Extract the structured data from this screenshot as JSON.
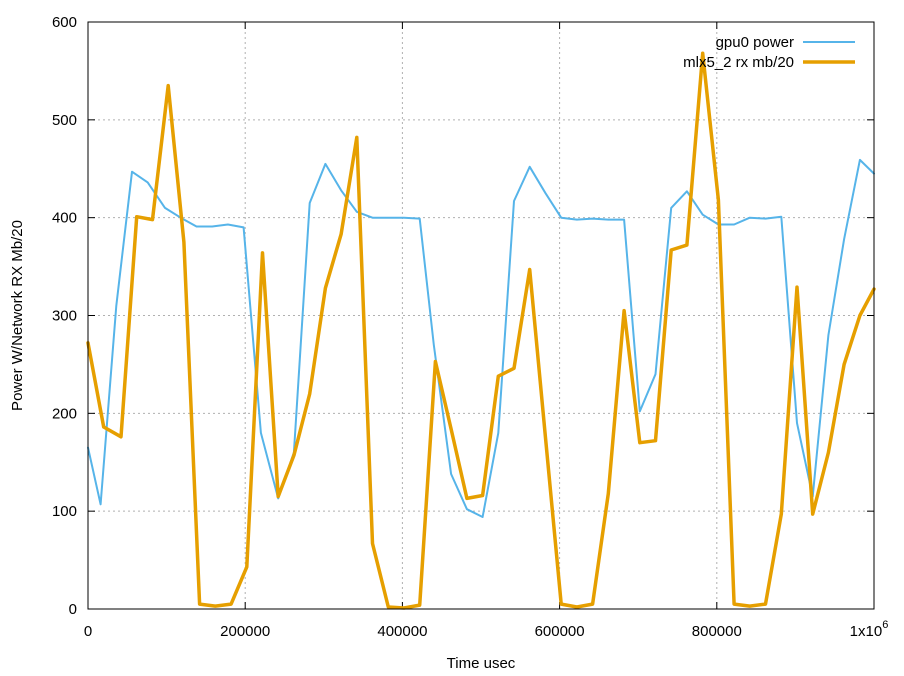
{
  "chart_data": {
    "type": "line",
    "xlabel": "Time usec",
    "ylabel": "Power W/Network RX Mb/20",
    "xlim": [
      0,
      1000000
    ],
    "ylim": [
      0,
      600
    ],
    "x_ticks": [
      0,
      200000,
      400000,
      600000,
      800000,
      1000000
    ],
    "x_tick_labels": [
      "0",
      "200000",
      "400000",
      "600000",
      "800000",
      "1x10"
    ],
    "x_last_tick_exponent": "6",
    "y_ticks": [
      0,
      100,
      200,
      300,
      400,
      500,
      600
    ],
    "y_tick_labels": [
      "0",
      "100",
      "200",
      "300",
      "400",
      "500",
      "600"
    ],
    "grid": true,
    "legend_position": "top-right",
    "series": [
      {
        "name": "gpu0 power",
        "color": "#56b4e9",
        "x": [
          0,
          16000,
          36000,
          56000,
          76000,
          98000,
          118000,
          138000,
          158000,
          178000,
          198000,
          220000,
          242000,
          262000,
          282000,
          302000,
          322000,
          342000,
          362000,
          382000,
          402000,
          422000,
          440000,
          462000,
          482000,
          502000,
          522000,
          542000,
          562000,
          582000,
          602000,
          622000,
          642000,
          662000,
          682000,
          702000,
          722000,
          742000,
          762000,
          782000,
          802000,
          822000,
          842000,
          862000,
          882000,
          902000,
          922000,
          942000,
          962000,
          982000,
          1000000
        ],
        "values": [
          165,
          107,
          310,
          447,
          436,
          410,
          400,
          391,
          391,
          393,
          390,
          180,
          113,
          160,
          415,
          455,
          428,
          406,
          400,
          400,
          400,
          399,
          270,
          138,
          102,
          94,
          180,
          417,
          452,
          425,
          400,
          398,
          399,
          398,
          398,
          202,
          240,
          410,
          427,
          403,
          393,
          393,
          400,
          399,
          401,
          190,
          115,
          280,
          378,
          459,
          445
        ]
      },
      {
        "name": "mlx5_2 rx mb/20",
        "color": "#e69f00",
        "x": [
          0,
          20000,
          42000,
          62000,
          82000,
          102000,
          122000,
          142000,
          162000,
          182000,
          202000,
          222000,
          242000,
          262000,
          282000,
          302000,
          322000,
          342000,
          362000,
          382000,
          402000,
          422000,
          442000,
          462000,
          482000,
          502000,
          522000,
          542000,
          562000,
          582000,
          602000,
          622000,
          642000,
          662000,
          682000,
          702000,
          722000,
          742000,
          762000,
          782000,
          802000,
          822000,
          842000,
          862000,
          882000,
          902000,
          922000,
          942000,
          962000,
          982000,
          1000000
        ],
        "values": [
          272,
          186,
          176,
          401,
          398,
          535,
          375,
          5,
          3,
          5,
          43,
          364,
          115,
          157,
          220,
          328,
          383,
          482,
          67,
          2,
          1,
          4,
          253,
          184,
          113,
          116,
          238,
          246,
          347,
          175,
          5,
          2,
          5,
          118,
          305,
          170,
          172,
          367,
          372,
          568,
          418,
          5,
          3,
          5,
          97,
          329,
          97,
          160,
          250,
          300,
          327
        ]
      }
    ]
  }
}
